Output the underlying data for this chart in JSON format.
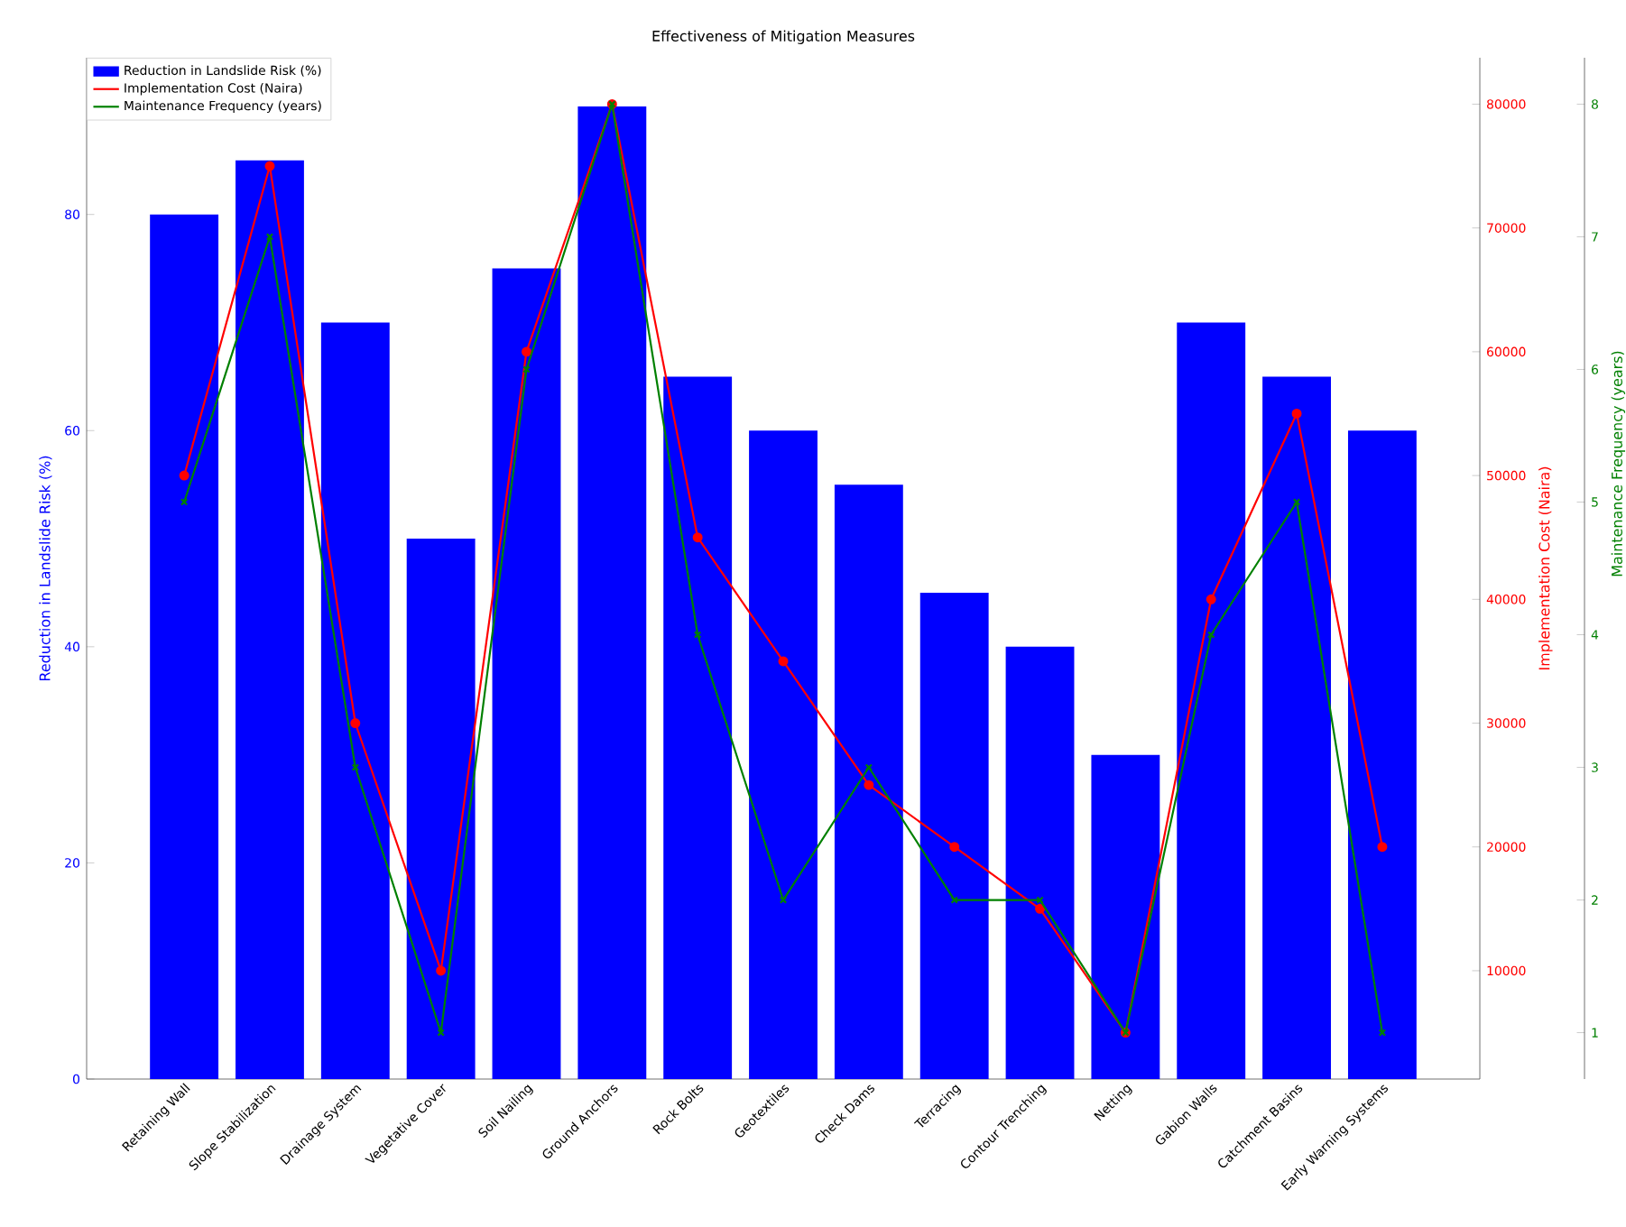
{
  "chart_data": {
    "type": "bar",
    "title": "Effectiveness of Mitigation Measures",
    "ylabel": "Reduction in Landslide Risk (%)",
    "y2label": "Implementation Cost (Naira)",
    "y3label": "Maintenance Frequency (years)",
    "categories": [
      "Retaining Wall",
      "Slope Stabilization",
      "Drainage System",
      "Vegetative Cover",
      "Soil Nailing",
      "Ground Anchors",
      "Rock Bolts",
      "Geotextiles",
      "Check Dams",
      "Terracing",
      "Contour Trenching",
      "Netting",
      "Gabion Walls",
      "Catchment Basins",
      "Early Warning Systems"
    ],
    "series": [
      {
        "name": "Reduction in Landslide Risk (%)",
        "color": "#0000ff",
        "values": [
          80,
          85,
          70,
          50,
          75,
          90,
          65,
          60,
          55,
          45,
          40,
          30,
          70,
          65,
          60
        ]
      },
      {
        "name": "Implementation Cost (Naira)",
        "type": "line",
        "axis": "y2",
        "color": "#ff0000",
        "marker": "circle",
        "line_style": "solid",
        "values": [
          50000,
          75000,
          30000,
          10000,
          60000,
          80000,
          45000,
          35000,
          25000,
          20000,
          15000,
          5000,
          40000,
          55000,
          20000
        ]
      },
      {
        "name": "Maintenance Frequency (years)",
        "type": "line",
        "axis": "y3",
        "color": "#008000",
        "marker": "cross",
        "line_style": "solid",
        "values": [
          5,
          7,
          3,
          1,
          6,
          8,
          4,
          2,
          3,
          2,
          2,
          1,
          4,
          5,
          1
        ]
      }
    ],
    "ylim": [
      0,
      94.5
    ],
    "yticks": [
      0,
      20,
      40,
      60,
      80
    ],
    "y2lim": [
      1250,
      83750
    ],
    "y2ticks": [
      10000,
      20000,
      30000,
      40000,
      50000,
      60000,
      70000,
      80000
    ],
    "y3lim": [
      0.65,
      8.35
    ],
    "y3ticks": [
      1,
      2,
      3,
      4,
      5,
      6,
      7,
      8
    ],
    "legend": "top left",
    "grid": false
  }
}
